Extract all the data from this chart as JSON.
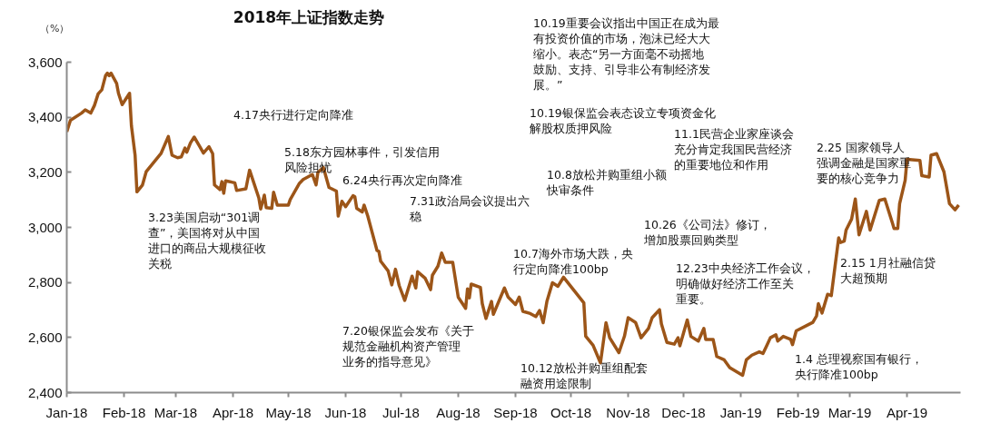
{
  "chart_data": {
    "type": "line",
    "title": "2018年上证指数走势",
    "ylabel": "（%）",
    "grid": false,
    "line_style": "solid",
    "marker": "none",
    "xlim": [
      "2018-01-01",
      "2019-04-30"
    ],
    "xticks": [
      {
        "value": "2018-01-01",
        "label": "Jan-18"
      },
      {
        "value": "2018-02-01",
        "label": "Feb-18"
      },
      {
        "value": "2018-03-01",
        "label": "Mar-18"
      },
      {
        "value": "2018-04-01",
        "label": "Apr-18"
      },
      {
        "value": "2018-05-01",
        "label": "May-18"
      },
      {
        "value": "2018-06-01",
        "label": "Jun-18"
      },
      {
        "value": "2018-07-01",
        "label": "Jul-18"
      },
      {
        "value": "2018-08-01",
        "label": "Aug-18"
      },
      {
        "value": "2018-09-01",
        "label": "Sep-18"
      },
      {
        "value": "2018-10-01",
        "label": "Oct-18"
      },
      {
        "value": "2018-11-01",
        "label": "Nov-18"
      },
      {
        "value": "2018-12-01",
        "label": "Dec-18"
      },
      {
        "value": "2019-01-01",
        "label": "Jan-19"
      },
      {
        "value": "2019-02-01",
        "label": "Feb-19"
      },
      {
        "value": "2019-03-01",
        "label": "Mar-19"
      },
      {
        "value": "2019-04-01",
        "label": "Apr-19"
      }
    ],
    "ylim": [
      2400,
      3600
    ],
    "yticks": [
      {
        "value": 2400,
        "label": "2,400"
      },
      {
        "value": 2600,
        "label": "2,600"
      },
      {
        "value": 2800,
        "label": "2,800"
      },
      {
        "value": 3000,
        "label": "3,000"
      },
      {
        "value": 3200,
        "label": "3,200"
      },
      {
        "value": 3400,
        "label": "3,400"
      },
      {
        "value": 3600,
        "label": "3,600"
      }
    ],
    "series": [
      {
        "color": "#9c5518",
        "x": [
          "2018-01-01",
          "2018-01-03",
          "2018-01-09",
          "2018-01-11",
          "2018-01-14",
          "2018-01-16",
          "2018-01-18",
          "2018-01-20",
          "2018-01-22",
          "2018-01-23",
          "2018-01-24",
          "2018-01-25",
          "2018-01-28",
          "2018-01-29",
          "2018-01-31",
          "2018-02-04",
          "2018-02-05",
          "2018-02-07",
          "2018-02-08",
          "2018-02-11",
          "2018-02-13",
          "2018-02-21",
          "2018-02-25",
          "2018-02-27",
          "2018-03-02",
          "2018-03-04",
          "2018-03-06",
          "2018-03-07",
          "2018-03-09",
          "2018-03-11",
          "2018-03-14",
          "2018-03-16",
          "2018-03-19",
          "2018-03-21",
          "2018-03-22",
          "2018-03-25",
          "2018-03-26",
          "2018-03-27",
          "2018-03-28",
          "2018-04-02",
          "2018-04-03",
          "2018-04-08",
          "2018-04-10",
          "2018-04-15",
          "2018-04-16",
          "2018-04-18",
          "2018-04-19",
          "2018-04-22",
          "2018-04-23",
          "2018-04-25",
          "2018-05-01",
          "2018-05-02",
          "2018-05-07",
          "2018-05-09",
          "2018-05-14",
          "2018-05-16",
          "2018-05-17",
          "2018-05-20",
          "2018-05-23",
          "2018-05-27",
          "2018-05-28",
          "2018-05-30",
          "2018-06-01",
          "2018-06-05",
          "2018-06-06",
          "2018-06-07",
          "2018-06-10",
          "2018-06-11",
          "2018-06-13",
          "2018-06-18",
          "2018-06-19",
          "2018-06-20",
          "2018-06-24",
          "2018-06-26",
          "2018-06-28",
          "2018-06-30",
          "2018-07-03",
          "2018-07-07",
          "2018-07-09",
          "2018-07-10",
          "2018-07-14",
          "2018-07-17",
          "2018-07-18",
          "2018-07-21",
          "2018-07-23",
          "2018-07-25",
          "2018-07-29",
          "2018-08-01",
          "2018-08-05",
          "2018-08-06",
          "2018-08-07",
          "2018-08-08",
          "2018-08-13",
          "2018-08-14",
          "2018-08-16",
          "2018-08-19",
          "2018-08-20",
          "2018-08-26",
          "2018-08-28",
          "2018-09-01",
          "2018-09-03",
          "2018-09-05",
          "2018-09-09",
          "2018-09-12",
          "2018-09-14",
          "2018-09-16",
          "2018-09-18",
          "2018-09-21",
          "2018-09-24",
          "2018-09-26",
          "2018-09-27",
          "2018-10-08",
          "2018-10-09",
          "2018-10-13",
          "2018-10-17",
          "2018-10-20",
          "2018-10-22",
          "2018-10-27",
          "2018-10-30",
          "2018-11-01",
          "2018-11-05",
          "2018-11-08",
          "2018-11-12",
          "2018-11-14",
          "2018-11-18",
          "2018-11-19",
          "2018-11-22",
          "2018-11-26",
          "2018-11-28",
          "2018-11-29",
          "2018-12-03",
          "2018-12-05",
          "2018-12-09",
          "2018-12-12",
          "2018-12-13",
          "2018-12-17",
          "2018-12-19",
          "2018-12-23",
          "2018-12-26",
          "2019-01-02",
          "2019-01-04",
          "2019-01-07",
          "2019-01-11",
          "2019-01-13",
          "2019-01-15",
          "2019-01-17",
          "2019-01-20",
          "2019-01-21",
          "2019-01-24",
          "2019-01-28",
          "2019-01-29",
          "2019-01-31",
          "2019-02-09",
          "2019-02-11",
          "2019-02-12",
          "2019-02-14",
          "2019-02-17",
          "2019-02-19",
          "2019-02-23",
          "2019-02-24",
          "2019-02-26",
          "2019-02-27",
          "2019-03-02",
          "2019-03-04",
          "2019-03-06",
          "2019-03-10",
          "2019-03-12",
          "2019-03-17",
          "2019-03-20",
          "2019-03-24",
          "2019-03-25",
          "2019-03-27",
          "2019-03-28",
          "2019-03-31",
          "2019-04-01",
          "2019-04-08",
          "2019-04-09",
          "2019-04-13",
          "2019-04-14",
          "2019-04-17",
          "2019-04-21",
          "2019-04-24",
          "2019-04-27",
          "2019-04-29"
        ],
        "values": [
          3347,
          3389,
          3415,
          3427,
          3415,
          3443,
          3485,
          3500,
          3551,
          3560,
          3551,
          3560,
          3523,
          3487,
          3446,
          3487,
          3370,
          3262,
          3129,
          3154,
          3202,
          3268,
          3330,
          3262,
          3253,
          3256,
          3288,
          3273,
          3307,
          3328,
          3294,
          3270,
          3293,
          3268,
          3154,
          3137,
          3166,
          3124,
          3169,
          3162,
          3134,
          3140,
          3208,
          3107,
          3067,
          3117,
          3072,
          3069,
          3128,
          3081,
          3081,
          3101,
          3160,
          3174,
          3192,
          3154,
          3200,
          3217,
          3145,
          3132,
          3041,
          3095,
          3075,
          3115,
          3111,
          3069,
          3056,
          3081,
          3041,
          2916,
          2913,
          2877,
          2842,
          2791,
          2848,
          2789,
          2735,
          2823,
          2780,
          2839,
          2816,
          2774,
          2826,
          2859,
          2907,
          2873,
          2873,
          2746,
          2706,
          2777,
          2744,
          2794,
          2782,
          2723,
          2669,
          2731,
          2684,
          2780,
          2747,
          2720,
          2747,
          2695,
          2687,
          2676,
          2698,
          2654,
          2731,
          2799,
          2786,
          2808,
          2819,
          2726,
          2605,
          2572,
          2508,
          2654,
          2599,
          2545,
          2605,
          2672,
          2655,
          2599,
          2633,
          2672,
          2701,
          2650,
          2582,
          2576,
          2599,
          2570,
          2664,
          2604,
          2587,
          2633,
          2593,
          2593,
          2531,
          2519,
          2491,
          2463,
          2519,
          2536,
          2548,
          2542,
          2570,
          2599,
          2610,
          2587,
          2604,
          2593,
          2574,
          2624,
          2655,
          2678,
          2723,
          2689,
          2757,
          2752,
          2962,
          2945,
          2950,
          2990,
          3030,
          3103,
          2973,
          3058,
          2990,
          3098,
          3103,
          3018,
          2996,
          2996,
          3086,
          3171,
          3247,
          3243,
          3188,
          3183,
          3262,
          3268,
          3202,
          3086,
          3064,
          3081
        ]
      }
    ],
    "annotations": [
      "3.23美国启动“301调查”，美国将对从中国进口的商品大规模征收关税",
      "4.17央行进行定向降准",
      "5.18东方园林事件，引发信用风险担忧",
      "6.24央行再次定向降准",
      "7.31政治局会议提出六稳",
      "7.20银保监会发布《关于规范金融机构资产管理业务的指导意见》",
      "10.19重要会议指出中国正在成为最有投资价值的市场，泡沫已经大大缩小。表态“另一方面毫不动摇地鼓励、支持、引导非公有制经济发展。”",
      "10.19银保监会表态设立专项资金化解股权质押风险",
      "10.8放松并购重组小额快审条件",
      "10.7海外市场大跌，央行定向降准100bp",
      "10.12放松并购重组配套融资用途限制",
      "10.26《公司法》修订，增加股票回购类型",
      "11.1民营企业家座谈会充分肯定我国民营经济的重要地位和作用",
      "12.23中央经济工作会议，明确做好经济工作至关重要。",
      "2.25 国家领导人强调金融是国家重要的核心竞争力",
      "2.15 1月社融信贷大超预期",
      "1.4 总理视察国有银行，央行降准100bp"
    ]
  }
}
